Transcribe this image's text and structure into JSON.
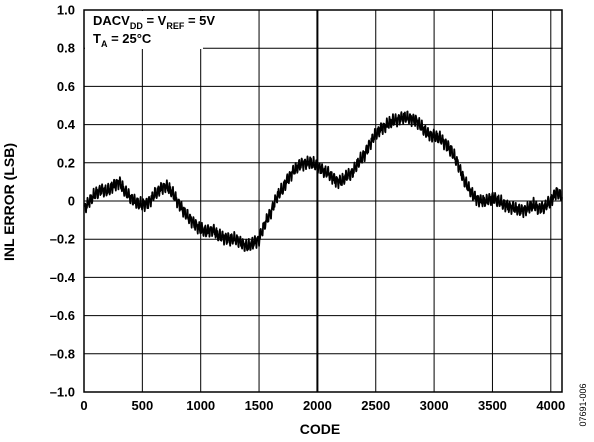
{
  "figure_id": "07691-006",
  "chart_data": {
    "type": "line",
    "xlabel": "CODE",
    "ylabel": "INL ERROR (LSB)",
    "xlim": [
      0,
      4096
    ],
    "ylim": [
      -1.0,
      1.0
    ],
    "x_ticks": [
      0,
      500,
      1000,
      1500,
      2000,
      2500,
      3000,
      3500,
      4000
    ],
    "x_tick_labels": [
      "0",
      "500",
      "1000",
      "1500",
      "2000",
      "2500",
      "3000",
      "3500",
      "4000"
    ],
    "y_ticks": [
      1.0,
      0.8,
      0.6,
      0.4,
      0.2,
      0,
      -0.2,
      -0.4,
      -0.6,
      -0.8,
      -1.0
    ],
    "y_tick_labels": [
      "1.0",
      "0.8",
      "0.6",
      "0.4",
      "0.2",
      "0",
      "–0.2",
      "–0.4",
      "–0.6",
      "–0.8",
      "–1.0"
    ],
    "grid": true,
    "annotation": {
      "line1": {
        "p1": "DACV",
        "s1": "DD",
        "p2": " = V",
        "s2": "REF",
        "p3": " = 5V"
      },
      "line2": {
        "p1": "T",
        "s1": "A",
        "p2": " = 25°C"
      }
    },
    "series": [
      {
        "color": "#000000",
        "x": [
          0,
          50,
          100,
          150,
          200,
          250,
          300,
          350,
          400,
          450,
          500,
          550,
          600,
          650,
          700,
          750,
          800,
          850,
          900,
          950,
          1000,
          1050,
          1100,
          1150,
          1200,
          1250,
          1300,
          1350,
          1400,
          1450,
          1500,
          1550,
          1600,
          1650,
          1700,
          1750,
          1800,
          1850,
          1900,
          1950,
          2000,
          2050,
          2100,
          2150,
          2200,
          2250,
          2300,
          2350,
          2400,
          2450,
          2500,
          2550,
          2600,
          2650,
          2700,
          2750,
          2800,
          2850,
          2900,
          2950,
          3000,
          3050,
          3100,
          3150,
          3200,
          3250,
          3300,
          3350,
          3400,
          3450,
          3500,
          3550,
          3600,
          3650,
          3700,
          3750,
          3800,
          3850,
          3900,
          3950,
          4000,
          4050,
          4095
        ],
        "y": [
          -0.04,
          0.0,
          0.04,
          0.06,
          0.05,
          0.08,
          0.1,
          0.05,
          0.02,
          -0.01,
          -0.02,
          -0.01,
          0.03,
          0.06,
          0.08,
          0.05,
          0.0,
          -0.05,
          -0.09,
          -0.12,
          -0.15,
          -0.16,
          -0.15,
          -0.18,
          -0.19,
          -0.2,
          -0.2,
          -0.22,
          -0.24,
          -0.22,
          -0.2,
          -0.12,
          -0.06,
          0.02,
          0.06,
          0.12,
          0.16,
          0.19,
          0.2,
          0.2,
          0.18,
          0.16,
          0.14,
          0.11,
          0.1,
          0.13,
          0.15,
          0.2,
          0.24,
          0.3,
          0.35,
          0.38,
          0.4,
          0.42,
          0.43,
          0.44,
          0.43,
          0.42,
          0.38,
          0.35,
          0.34,
          0.33,
          0.3,
          0.26,
          0.2,
          0.12,
          0.06,
          0.02,
          0.0,
          0.0,
          0.02,
          0.0,
          -0.02,
          -0.03,
          -0.04,
          -0.05,
          -0.04,
          -0.02,
          -0.04,
          -0.03,
          0.0,
          0.05,
          0.02
        ]
      }
    ]
  }
}
